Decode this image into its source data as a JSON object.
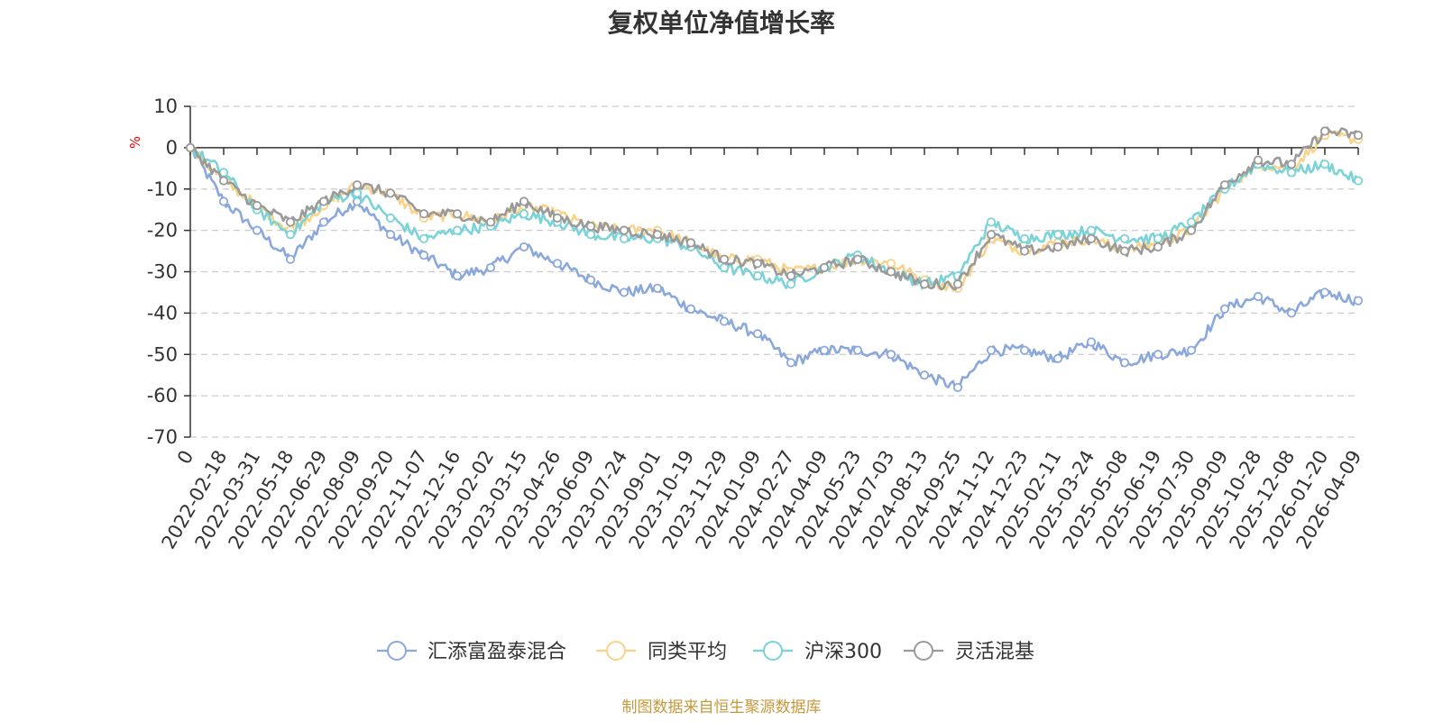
{
  "chart_data": {
    "type": "line",
    "title": "复权单位净值增长率",
    "ylabel": "%",
    "ylim": [
      -70,
      10
    ],
    "yticks": [
      10,
      0,
      -10,
      -20,
      -30,
      -40,
      -50,
      -60,
      -70
    ],
    "grid": true,
    "legend_position": "bottom-center",
    "categories": [
      "0",
      "2022-02-18",
      "2022-03-31",
      "2022-05-18",
      "2022-06-29",
      "2022-08-09",
      "2022-09-20",
      "2022-11-07",
      "2022-12-16",
      "2023-02-02",
      "2023-03-15",
      "2023-04-26",
      "2023-06-09",
      "2023-07-24",
      "2023-09-01",
      "2023-10-19",
      "2023-11-29",
      "2024-01-09",
      "2024-02-27",
      "2024-04-09",
      "2024-05-23",
      "2024-07-03",
      "2024-08-13",
      "2024-09-25",
      "2024-11-12",
      "2024-12-23",
      "2025-02-11",
      "2025-03-24",
      "2025-05-08",
      "2025-06-19",
      "2025-07-30",
      "2025-09-09",
      "2025-10-28",
      "2025-12-08",
      "2026-01-20",
      "2026-04-09"
    ],
    "series": [
      {
        "name": "汇添富盈泰混合",
        "color": "#8aa8dc",
        "values": [
          0,
          -13,
          -20,
          -27,
          -18,
          -13,
          -21,
          -26,
          -31,
          -29,
          -24,
          -28,
          -32,
          -35,
          -34,
          -39,
          -42,
          -45,
          -52,
          -49,
          -49,
          -50,
          -55,
          -58,
          -49,
          -49,
          -51,
          -47,
          -52,
          -50,
          -49,
          -39,
          -36,
          -40,
          -35,
          -37
        ]
      },
      {
        "name": "同类平均",
        "color": "#f9d38a",
        "values": [
          0,
          -8,
          -14,
          -20,
          -14,
          -9,
          -11,
          -17,
          -16,
          -18,
          -14,
          -16,
          -19,
          -20,
          -20,
          -23,
          -27,
          -27,
          -30,
          -29,
          -27,
          -28,
          -32,
          -34,
          -22,
          -25,
          -23,
          -22,
          -25,
          -23,
          -20,
          -10,
          -4,
          -5,
          3,
          2
        ]
      },
      {
        "name": "沪深300",
        "color": "#7ad3d8",
        "values": [
          0,
          -6,
          -15,
          -21,
          -13,
          -11,
          -17,
          -22,
          -20,
          -19,
          -16,
          -18,
          -21,
          -22,
          -22,
          -24,
          -29,
          -31,
          -33,
          -29,
          -26,
          -30,
          -33,
          -31,
          -18,
          -22,
          -21,
          -20,
          -22,
          -22,
          -18,
          -10,
          -4,
          -6,
          -4,
          -8
        ]
      },
      {
        "name": "灵活混基",
        "color": "#9a9a9a",
        "values": [
          0,
          -8,
          -14,
          -18,
          -13,
          -9,
          -11,
          -16,
          -16,
          -18,
          -13,
          -17,
          -19,
          -20,
          -21,
          -23,
          -27,
          -28,
          -31,
          -29,
          -27,
          -30,
          -33,
          -33,
          -21,
          -25,
          -24,
          -22,
          -25,
          -24,
          -20,
          -9,
          -3,
          -4,
          4,
          3
        ]
      }
    ]
  },
  "source_note": "制图数据来自恒生聚源数据库"
}
